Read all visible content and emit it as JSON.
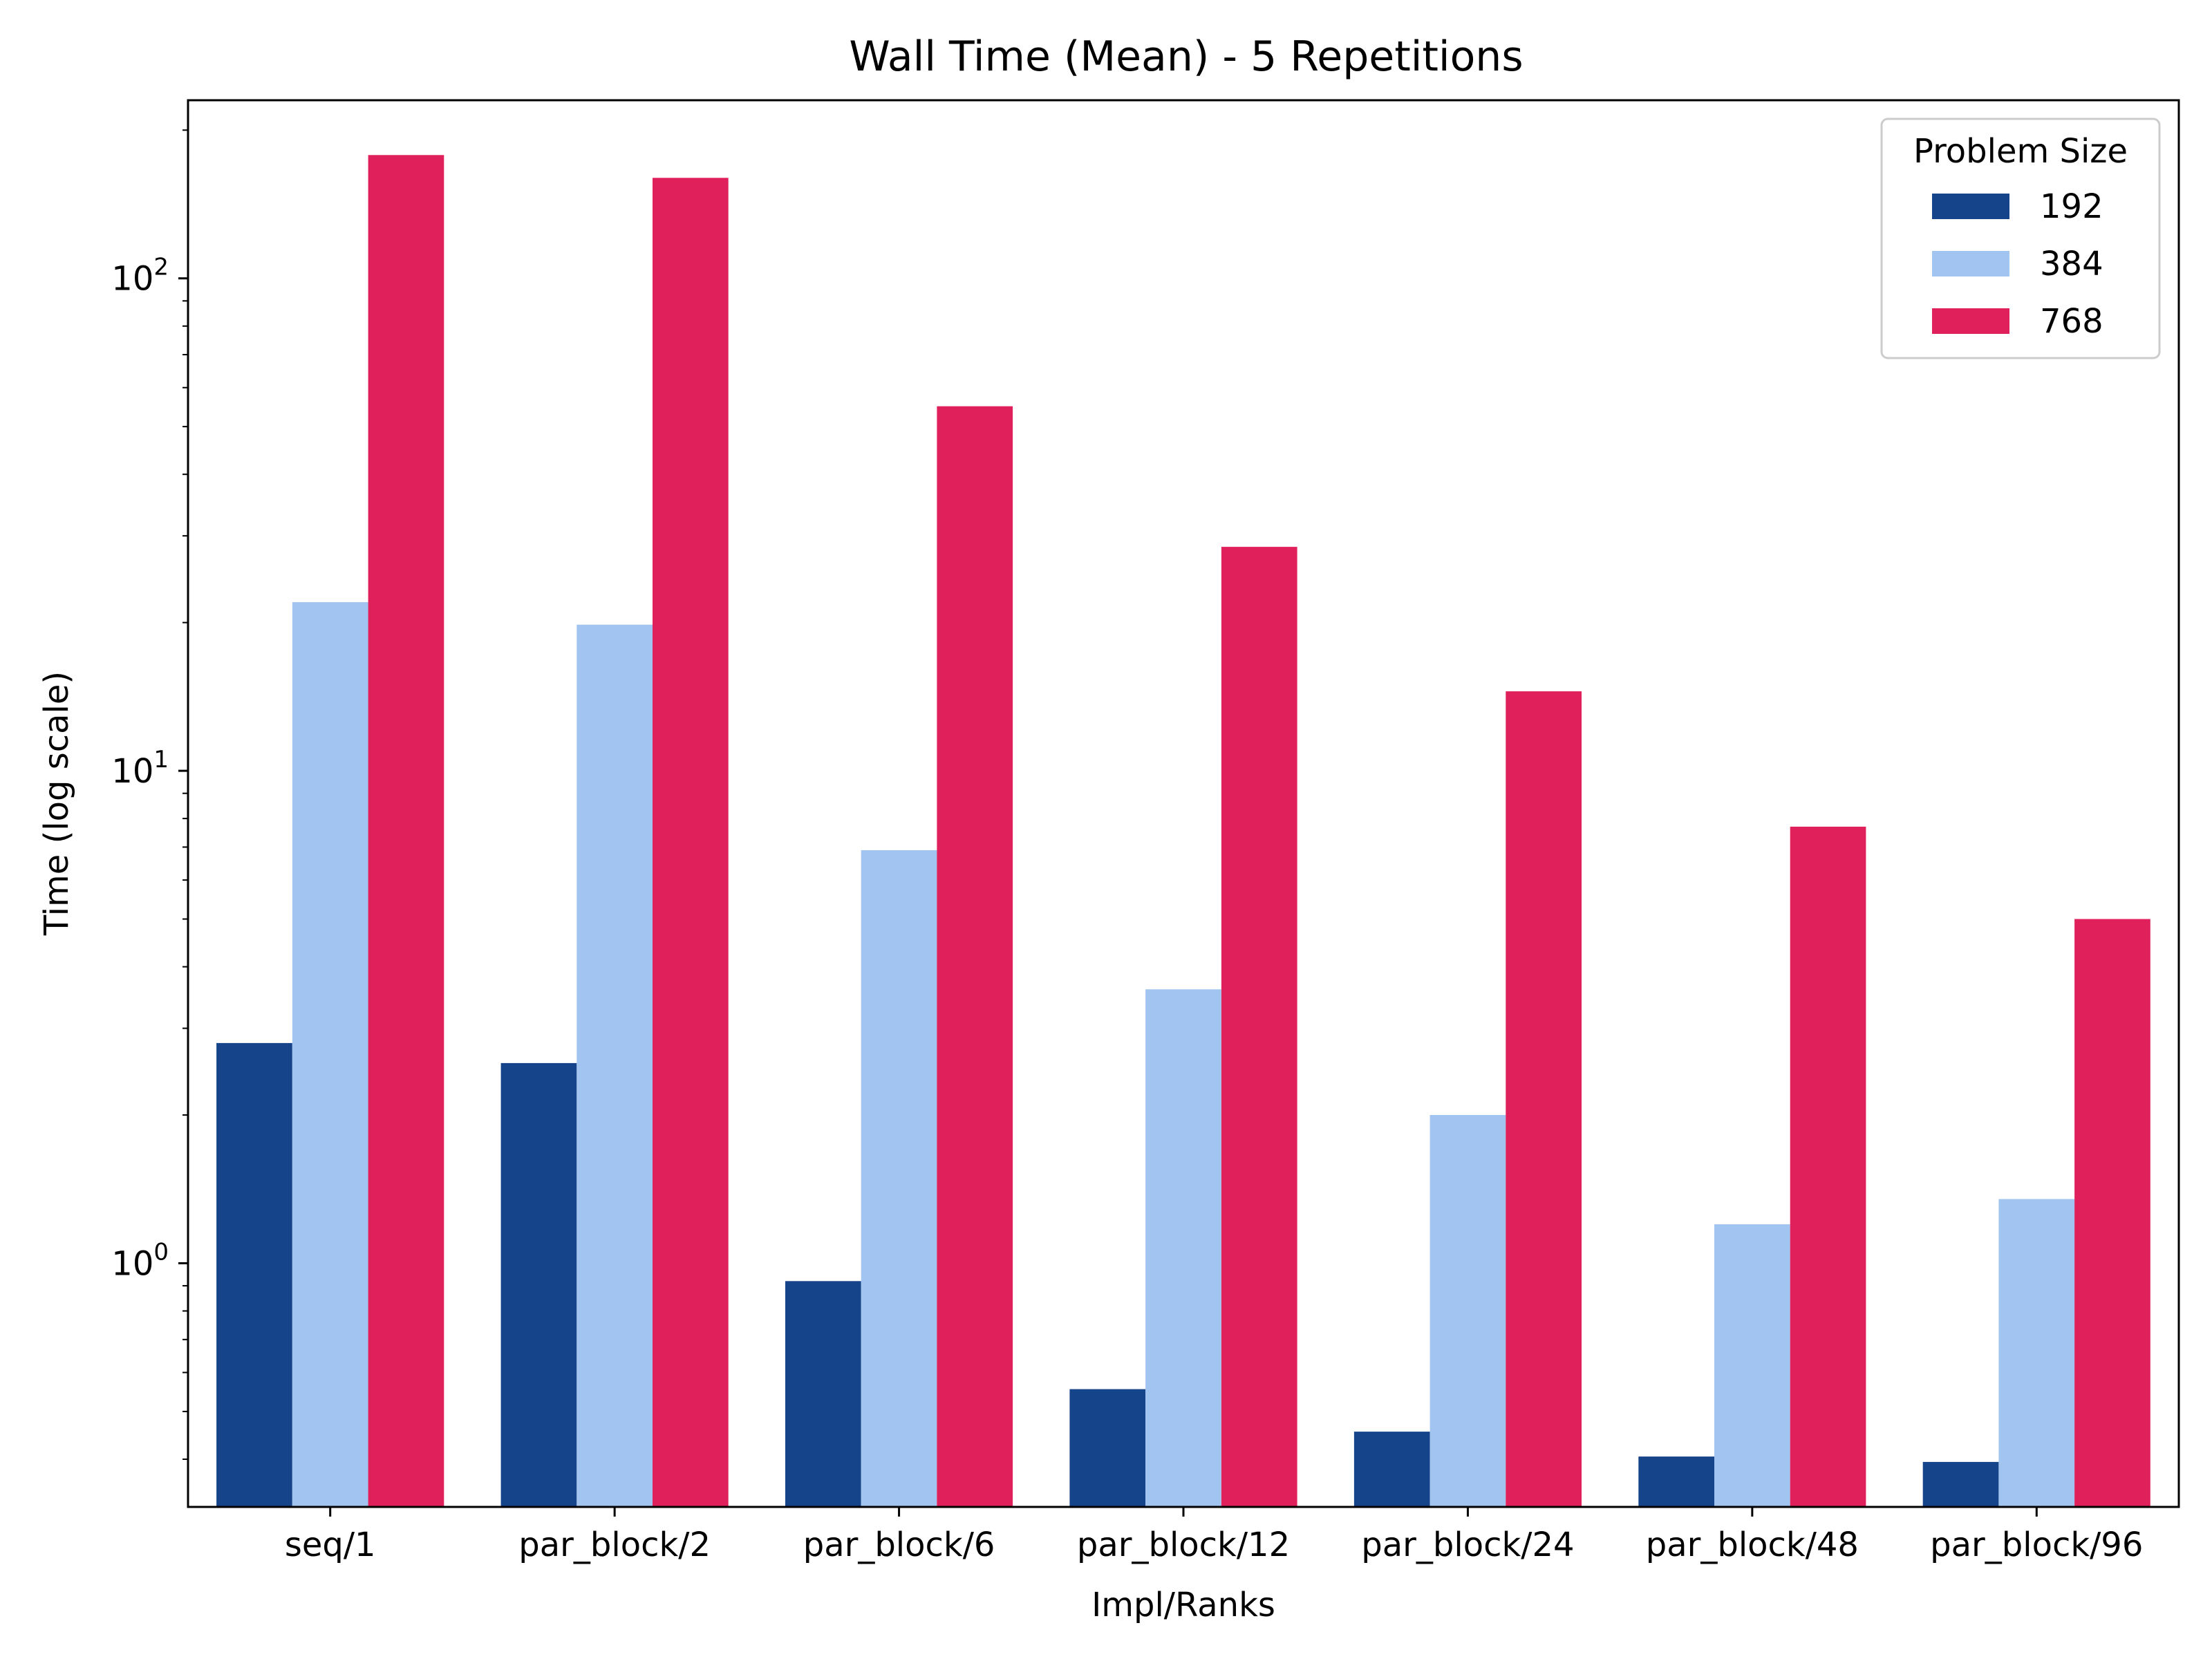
{
  "chart_data": {
    "type": "bar",
    "title": "Wall Time (Mean) - 5 Repetitions",
    "xlabel": "Impl/Ranks",
    "ylabel": "Time (log scale)",
    "yscale": "log",
    "ylim": [
      0.32,
      230
    ],
    "grid": false,
    "legend_title": "Problem Size",
    "legend_position": "top-right",
    "categories": [
      "seq/1",
      "par_block/2",
      "par_block/6",
      "par_block/12",
      "par_block/24",
      "par_block/48",
      "par_block/96"
    ],
    "series": [
      {
        "name": "192",
        "color": "#15448a",
        "values": [
          2.8,
          2.55,
          0.92,
          0.555,
          0.455,
          0.405,
          0.395
        ]
      },
      {
        "name": "384",
        "color": "#a2c4f0",
        "values": [
          22.0,
          19.8,
          6.9,
          3.6,
          2.0,
          1.2,
          1.35
        ]
      },
      {
        "name": "768",
        "color": "#e0205a",
        "values": [
          178,
          160,
          55,
          28.5,
          14.5,
          7.7,
          5.0
        ]
      }
    ],
    "yticks": [
      {
        "value": 1,
        "base": "10",
        "exp": "0"
      },
      {
        "value": 10,
        "base": "10",
        "exp": "1"
      },
      {
        "value": 100,
        "base": "10",
        "exp": "2"
      }
    ]
  }
}
